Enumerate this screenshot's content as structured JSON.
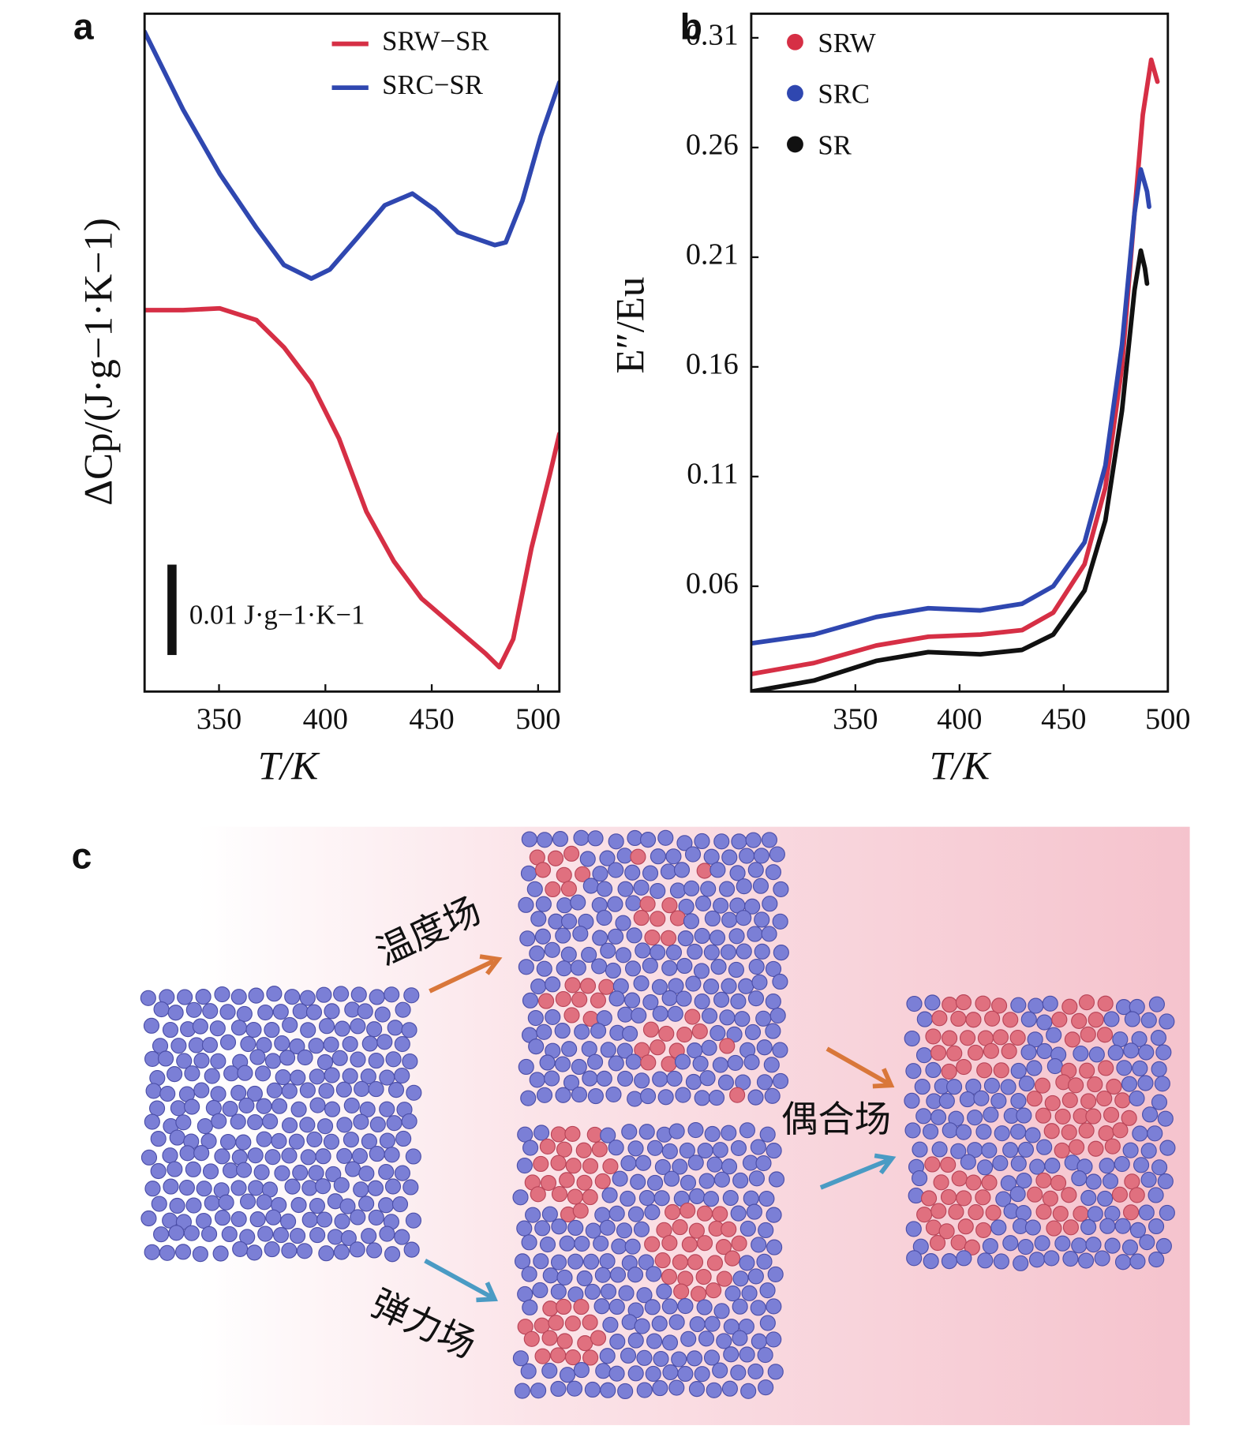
{
  "chart_data": [
    {
      "type": "line",
      "panel_label": "a",
      "xlabel": "T/K",
      "ylabel": "ΔCp/(J·g−1·K−1)",
      "xlim": [
        315,
        510
      ],
      "ylim": [
        0,
        0.075
      ],
      "xticks": [
        350,
        400,
        450,
        500
      ],
      "legend": "upper right",
      "scale_bar": {
        "value": 0.01,
        "label": "0.01 J·g−1·K−1"
      },
      "series": [
        {
          "name": "SRW−SR",
          "color": "#d62f45",
          "x": [
            315,
            333.1,
            350.3,
            367.6,
            380.5,
            393.4,
            406.4,
            419.3,
            432.2,
            445.2,
            462.4,
            475.3,
            481.8,
            488.3,
            496.9,
            505.5,
            510
          ],
          "values": [
            0.0422,
            0.0422,
            0.0424,
            0.0411,
            0.0381,
            0.0341,
            0.028,
            0.0199,
            0.0144,
            0.0103,
            0.0068,
            0.0042,
            0.0027,
            0.0058,
            0.0159,
            0.024,
            0.0285
          ]
        },
        {
          "name": "SRC−SR",
          "color": "#2f47b0",
          "x": [
            315,
            333.1,
            350.3,
            367.6,
            380.5,
            393.4,
            402.1,
            415,
            427.9,
            440.9,
            451.6,
            462.4,
            479.7,
            484.8,
            492.6,
            501.2,
            510
          ],
          "values": [
            0.073,
            0.0644,
            0.0573,
            0.0513,
            0.0472,
            0.0457,
            0.0467,
            0.0502,
            0.0538,
            0.0551,
            0.0533,
            0.0508,
            0.0494,
            0.0497,
            0.0543,
            0.0614,
            0.0674
          ]
        }
      ]
    },
    {
      "type": "line",
      "panel_label": "b",
      "xlabel": "T/K",
      "ylabel": "E″/Eu",
      "xlim": [
        300,
        500
      ],
      "ylim": [
        0.012,
        0.321
      ],
      "xticks": [
        350,
        400,
        450,
        500
      ],
      "yticks": [
        0.06,
        0.11,
        0.16,
        0.21,
        0.26,
        0.31
      ],
      "legend": "upper left",
      "series": [
        {
          "name": "SRW",
          "color": "#d62f45",
          "x": [
            300,
            330,
            360,
            385,
            410,
            430,
            445,
            460,
            470,
            478,
            484,
            488,
            492,
            495
          ],
          "values": [
            0.02,
            0.025,
            0.033,
            0.037,
            0.038,
            0.04,
            0.048,
            0.07,
            0.105,
            0.16,
            0.23,
            0.275,
            0.3,
            0.29
          ]
        },
        {
          "name": "SRC",
          "color": "#2f47b0",
          "x": [
            300,
            330,
            360,
            385,
            410,
            430,
            445,
            460,
            470,
            478,
            484,
            487,
            490,
            491
          ],
          "values": [
            0.034,
            0.038,
            0.046,
            0.05,
            0.049,
            0.052,
            0.06,
            0.08,
            0.115,
            0.17,
            0.23,
            0.25,
            0.24,
            0.233
          ]
        },
        {
          "name": "SR",
          "color": "#111111",
          "x": [
            300,
            330,
            360,
            385,
            410,
            430,
            445,
            460,
            470,
            478,
            484,
            487,
            489,
            490
          ],
          "values": [
            0.012,
            0.017,
            0.026,
            0.03,
            0.029,
            0.031,
            0.038,
            0.058,
            0.09,
            0.14,
            0.195,
            0.213,
            0.205,
            0.198
          ]
        }
      ]
    }
  ],
  "diagram": {
    "panel_label": "c",
    "labels": {
      "temperature": "温度场",
      "elastic": "弹力场",
      "coupled": "偶合场"
    }
  }
}
